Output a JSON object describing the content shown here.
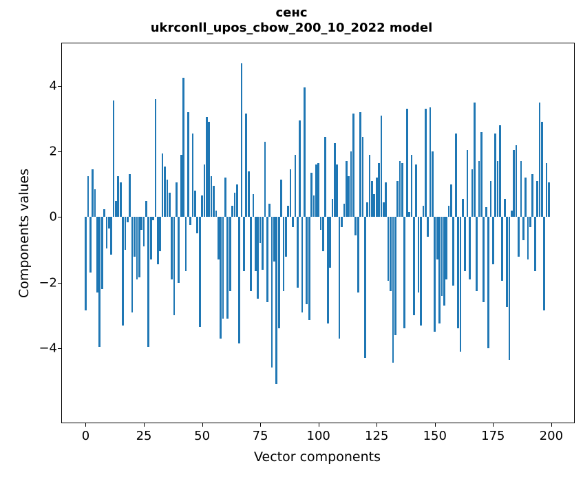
{
  "title": {
    "line1": "сенс",
    "line2": "ukrconll_upos_cbow_200_10_2022 model"
  },
  "chart_data": {
    "type": "bar",
    "title": "сенс",
    "subtitle": "ukrconll_upos_cbow_200_10_2022 model",
    "xlabel": "Vector components",
    "ylabel": "Components values",
    "bar_color": "#1f77b4",
    "axis_color": "#000000",
    "background_color": "#ffffff",
    "grid": false,
    "legend": null,
    "x_start": 0,
    "n_bars": 200,
    "xlim": [
      -10.2,
      209.8
    ],
    "ylim": [
      -6.27,
      5.3
    ],
    "xtick_values": [
      0,
      25,
      50,
      75,
      100,
      125,
      150,
      175,
      200
    ],
    "xtick_labels": [
      "0",
      "25",
      "50",
      "75",
      "100",
      "125",
      "150",
      "175",
      "200"
    ],
    "ytick_values": [
      -4,
      -2,
      0,
      2,
      4
    ],
    "ytick_labels": [
      "−4",
      "−2",
      "0",
      "2",
      "4"
    ],
    "values": [
      -2.85,
      1.25,
      -1.7,
      1.45,
      0.85,
      -2.3,
      -3.95,
      -2.2,
      0.25,
      -0.95,
      -0.35,
      -1.15,
      3.55,
      0.5,
      1.25,
      1.05,
      -3.3,
      -1.0,
      -0.15,
      1.3,
      -2.9,
      -1.2,
      -1.9,
      -1.85,
      -0.4,
      -0.9,
      0.5,
      -3.95,
      -1.3,
      -0.1,
      3.6,
      -1.45,
      -1.05,
      1.95,
      1.55,
      1.15,
      0.75,
      -1.9,
      -3.0,
      1.05,
      -2.0,
      1.9,
      4.25,
      -1.65,
      3.2,
      -0.25,
      2.55,
      0.8,
      -0.5,
      -3.35,
      0.65,
      1.6,
      3.05,
      2.9,
      1.25,
      0.95,
      0.2,
      -1.3,
      -3.7,
      -3.1,
      1.2,
      -3.1,
      -2.25,
      0.35,
      0.75,
      1.0,
      -3.85,
      4.7,
      -1.65,
      3.15,
      1.4,
      -2.25,
      0.7,
      -1.65,
      -2.5,
      -0.8,
      -1.6,
      2.3,
      -2.6,
      0.4,
      -4.6,
      -1.35,
      -5.1,
      -3.4,
      1.15,
      -2.25,
      -1.2,
      0.35,
      1.45,
      -0.3,
      1.9,
      -2.15,
      2.95,
      -2.9,
      3.95,
      -2.65,
      -3.15,
      1.35,
      0.65,
      1.6,
      1.65,
      -0.4,
      -1.05,
      2.45,
      -3.25,
      -1.55,
      0.55,
      2.25,
      1.6,
      -3.7,
      -0.3,
      0.4,
      1.7,
      1.25,
      2.0,
      3.15,
      -0.55,
      -2.3,
      3.2,
      2.45,
      -4.3,
      0.45,
      1.9,
      1.1,
      0.7,
      1.2,
      1.65,
      3.1,
      0.45,
      1.05,
      -1.95,
      -2.25,
      -4.45,
      -3.6,
      1.1,
      1.7,
      1.65,
      -3.4,
      3.3,
      0.15,
      1.9,
      -3.0,
      1.6,
      -2.3,
      -3.3,
      0.35,
      3.3,
      -0.6,
      3.35,
      2.0,
      -3.5,
      -1.3,
      -3.25,
      -2.4,
      -2.7,
      -1.9,
      0.35,
      1.0,
      -2.1,
      2.55,
      -3.4,
      -4.1,
      0.55,
      -1.65,
      2.05,
      -1.9,
      1.45,
      3.5,
      -2.25,
      1.7,
      2.6,
      -2.6,
      0.3,
      -4.0,
      1.1,
      -1.45,
      2.55,
      1.7,
      2.8,
      -1.95,
      0.55,
      -2.75,
      -4.35,
      0.2,
      2.05,
      2.2,
      -1.2,
      1.7,
      -0.7,
      1.2,
      -1.3,
      -0.3,
      1.3,
      -1.65,
      1.1,
      3.5,
      2.9,
      -2.85,
      1.65,
      1.05
    ]
  }
}
